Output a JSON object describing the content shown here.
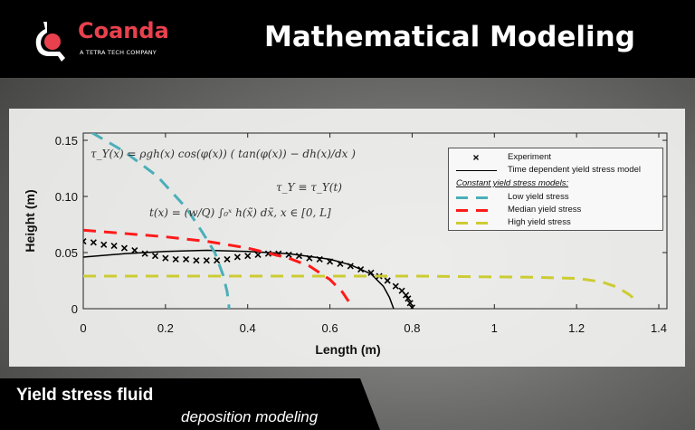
{
  "header": {
    "brand": "Coanda",
    "brand_tagline": "A TETRA TECH COMPANY",
    "title": "Mathematical Modeling",
    "brand_color": "#e8414d"
  },
  "footer": {
    "line1": "Yield stress fluid",
    "line2": "deposition modeling"
  },
  "equations": {
    "eq1": "τ_Y(x) = ρgh(x) cos(φ(x)) ( tan(φ(x)) − dh(x)/dx )",
    "eq2": "τ_Y ≡ τ_Y(t)",
    "eq3": "t(x) = (w/Q) ∫₀ˣ h(x̃) dx̃,    x ∈ [0, L]"
  },
  "chart_data": {
    "type": "line",
    "xlabel": "Length (m)",
    "ylabel": "Height (m)",
    "xlim": [
      0,
      1.42
    ],
    "ylim": [
      0,
      0.157
    ],
    "xticks": [
      "0",
      "0.2",
      "0.4",
      "0.6",
      "0.8",
      "1",
      "1.2",
      "1.4"
    ],
    "yticks": [
      "0",
      "0.05",
      "0.10",
      "0.15"
    ],
    "grid": false,
    "legend_placement": "top-right",
    "legend_group_heading": "Constant yield stress models:",
    "series": [
      {
        "name": "Experiment",
        "style": "x-markers",
        "color": "#000000",
        "x": [
          0,
          0.025,
          0.05,
          0.075,
          0.1,
          0.125,
          0.15,
          0.175,
          0.2,
          0.225,
          0.25,
          0.275,
          0.3,
          0.325,
          0.35,
          0.375,
          0.4,
          0.425,
          0.45,
          0.475,
          0.5,
          0.525,
          0.55,
          0.575,
          0.6,
          0.625,
          0.65,
          0.675,
          0.7,
          0.72,
          0.74,
          0.76,
          0.775,
          0.785,
          0.79,
          0.795,
          0.8
        ],
        "y": [
          0.06,
          0.059,
          0.057,
          0.056,
          0.054,
          0.052,
          0.049,
          0.047,
          0.045,
          0.044,
          0.044,
          0.043,
          0.043,
          0.043,
          0.044,
          0.046,
          0.047,
          0.048,
          0.049,
          0.049,
          0.048,
          0.047,
          0.045,
          0.044,
          0.042,
          0.04,
          0.038,
          0.035,
          0.032,
          0.029,
          0.025,
          0.02,
          0.016,
          0.012,
          0.009,
          0.005,
          0.001
        ]
      },
      {
        "name": "Time dependent yield stress model",
        "style": "solid",
        "color": "#000000",
        "x": [
          0,
          0.1,
          0.2,
          0.3,
          0.4,
          0.5,
          0.6,
          0.65,
          0.7,
          0.73,
          0.745,
          0.755
        ],
        "y": [
          0.046,
          0.049,
          0.051,
          0.052,
          0.051,
          0.049,
          0.044,
          0.039,
          0.031,
          0.02,
          0.01,
          0
        ]
      },
      {
        "name": "Low yield stress",
        "style": "dashed",
        "color": "#4aafb8",
        "x": [
          0.02,
          0.1,
          0.18,
          0.25,
          0.29,
          0.32,
          0.34,
          0.35,
          0.355
        ],
        "y": [
          0.157,
          0.14,
          0.118,
          0.09,
          0.068,
          0.05,
          0.03,
          0.015,
          0
        ]
      },
      {
        "name": "Median yield stress",
        "style": "dashed",
        "color": "#ff1a1a",
        "x": [
          0,
          0.1,
          0.2,
          0.3,
          0.4,
          0.5,
          0.55,
          0.6,
          0.63,
          0.65
        ],
        "y": [
          0.07,
          0.067,
          0.064,
          0.06,
          0.054,
          0.045,
          0.038,
          0.026,
          0.015,
          0.004
        ]
      },
      {
        "name": "High yield stress",
        "style": "dashed",
        "color": "#cccc33",
        "x": [
          0,
          0.4,
          0.8,
          1.1,
          1.2,
          1.26,
          1.3,
          1.33,
          1.35
        ],
        "y": [
          0.029,
          0.029,
          0.029,
          0.028,
          0.027,
          0.024,
          0.019,
          0.012,
          0.005
        ]
      }
    ]
  }
}
